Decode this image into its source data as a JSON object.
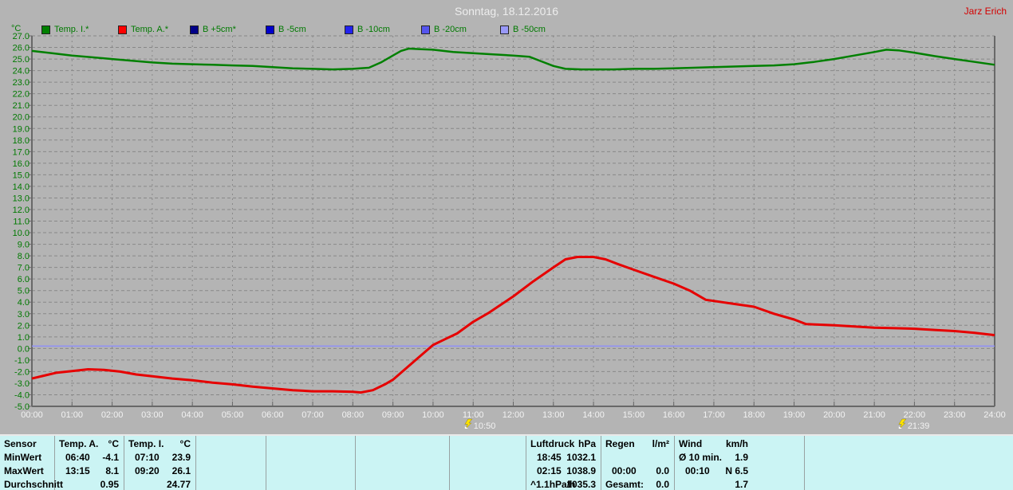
{
  "header": {
    "title": "Sonntag, 18.12.2016",
    "user": "Jarz Erich"
  },
  "legend": {
    "axis_unit": "°C",
    "items": [
      {
        "label": "Temp. I.*",
        "color": "#008000"
      },
      {
        "label": "Temp. A.*",
        "color": "#ff0000"
      },
      {
        "label": "B +5cm*",
        "color": "#000088"
      },
      {
        "label": "B -5cm",
        "color": "#0000cc"
      },
      {
        "label": "B -10cm",
        "color": "#2222ee"
      },
      {
        "label": "B -20cm",
        "color": "#5555ee"
      },
      {
        "label": "B -50cm",
        "color": "#9999f8"
      }
    ]
  },
  "chart_data": {
    "type": "line",
    "title": "Sonntag, 18.12.2016",
    "ylabel": "°C",
    "xlabel": "",
    "y_min": -5.0,
    "y_max": 27.0,
    "y_step": 1.0,
    "x_min": 0,
    "x_max": 24,
    "grid": true,
    "legend_position": "top",
    "x_ticks": [
      "00:00",
      "01:00",
      "02:00",
      "03:00",
      "04:00",
      "05:00",
      "06:00",
      "07:00",
      "08:00",
      "09:00",
      "10:00",
      "11:00",
      "12:00",
      "13:00",
      "14:00",
      "15:00",
      "16:00",
      "17:00",
      "18:00",
      "19:00",
      "20:00",
      "21:00",
      "22:00",
      "23:00",
      "24:00"
    ],
    "markers": [
      {
        "time": "10:50",
        "hour": 10.833,
        "icon": "lightning-icon"
      },
      {
        "time": "21:39",
        "hour": 21.65,
        "icon": "lightning-icon"
      }
    ],
    "series": [
      {
        "name": "B -50cm",
        "color": "#8f8ff8",
        "width": 1.5,
        "points": [
          [
            0,
            0.2
          ],
          [
            24,
            0.2
          ]
        ]
      },
      {
        "name": "Temp. A.*",
        "color": "#e60000",
        "width": 3,
        "points": [
          [
            0,
            -2.6
          ],
          [
            0.3,
            -2.35
          ],
          [
            0.6,
            -2.1
          ],
          [
            1,
            -1.95
          ],
          [
            1.4,
            -1.8
          ],
          [
            1.8,
            -1.85
          ],
          [
            2.2,
            -2.0
          ],
          [
            2.6,
            -2.25
          ],
          [
            3,
            -2.4
          ],
          [
            3.5,
            -2.6
          ],
          [
            4,
            -2.75
          ],
          [
            4.5,
            -2.95
          ],
          [
            5,
            -3.1
          ],
          [
            5.5,
            -3.3
          ],
          [
            6,
            -3.45
          ],
          [
            6.5,
            -3.6
          ],
          [
            7,
            -3.7
          ],
          [
            7.5,
            -3.7
          ],
          [
            8,
            -3.75
          ],
          [
            8.2,
            -3.8
          ],
          [
            8.5,
            -3.6
          ],
          [
            8.8,
            -3.1
          ],
          [
            9,
            -2.7
          ],
          [
            9.3,
            -1.8
          ],
          [
            9.6,
            -0.9
          ],
          [
            10,
            0.3
          ],
          [
            10.3,
            0.8
          ],
          [
            10.6,
            1.3
          ],
          [
            11,
            2.3
          ],
          [
            11.4,
            3.1
          ],
          [
            11.7,
            3.8
          ],
          [
            12,
            4.5
          ],
          [
            12.5,
            5.8
          ],
          [
            13,
            7.0
          ],
          [
            13.3,
            7.7
          ],
          [
            13.6,
            7.9
          ],
          [
            14,
            7.9
          ],
          [
            14.3,
            7.7
          ],
          [
            14.6,
            7.3
          ],
          [
            15,
            6.8
          ],
          [
            15.5,
            6.2
          ],
          [
            16,
            5.6
          ],
          [
            16.4,
            5.0
          ],
          [
            16.8,
            4.2
          ],
          [
            17.2,
            4.0
          ],
          [
            17.6,
            3.8
          ],
          [
            18,
            3.6
          ],
          [
            18.5,
            3.0
          ],
          [
            19,
            2.5
          ],
          [
            19.3,
            2.1
          ],
          [
            19.7,
            2.05
          ],
          [
            20,
            2.0
          ],
          [
            20.5,
            1.9
          ],
          [
            21,
            1.8
          ],
          [
            21.5,
            1.75
          ],
          [
            22,
            1.7
          ],
          [
            22.5,
            1.6
          ],
          [
            23,
            1.5
          ],
          [
            23.5,
            1.35
          ],
          [
            24,
            1.15
          ]
        ]
      },
      {
        "name": "Temp. I.*",
        "color": "#008000",
        "width": 2.5,
        "points": [
          [
            0,
            25.7
          ],
          [
            0.5,
            25.5
          ],
          [
            1,
            25.3
          ],
          [
            1.5,
            25.15
          ],
          [
            2,
            25.0
          ],
          [
            2.5,
            24.85
          ],
          [
            3,
            24.7
          ],
          [
            3.5,
            24.6
          ],
          [
            4,
            24.55
          ],
          [
            4.5,
            24.5
          ],
          [
            5,
            24.45
          ],
          [
            5.5,
            24.4
          ],
          [
            6,
            24.3
          ],
          [
            6.5,
            24.2
          ],
          [
            7,
            24.15
          ],
          [
            7.5,
            24.1
          ],
          [
            8,
            24.15
          ],
          [
            8.4,
            24.25
          ],
          [
            8.7,
            24.7
          ],
          [
            9,
            25.3
          ],
          [
            9.2,
            25.7
          ],
          [
            9.4,
            25.9
          ],
          [
            9.7,
            25.85
          ],
          [
            10,
            25.8
          ],
          [
            10.5,
            25.6
          ],
          [
            11,
            25.5
          ],
          [
            11.5,
            25.4
          ],
          [
            12,
            25.3
          ],
          [
            12.4,
            25.2
          ],
          [
            12.7,
            24.8
          ],
          [
            13,
            24.4
          ],
          [
            13.3,
            24.15
          ],
          [
            13.7,
            24.1
          ],
          [
            14,
            24.1
          ],
          [
            14.5,
            24.1
          ],
          [
            15,
            24.15
          ],
          [
            15.5,
            24.15
          ],
          [
            16,
            24.2
          ],
          [
            16.5,
            24.25
          ],
          [
            17,
            24.3
          ],
          [
            17.5,
            24.35
          ],
          [
            18,
            24.4
          ],
          [
            18.5,
            24.45
          ],
          [
            19,
            24.55
          ],
          [
            19.5,
            24.75
          ],
          [
            20,
            25.0
          ],
          [
            20.5,
            25.3
          ],
          [
            21,
            25.6
          ],
          [
            21.3,
            25.8
          ],
          [
            21.6,
            25.75
          ],
          [
            22,
            25.55
          ],
          [
            22.5,
            25.25
          ],
          [
            23,
            25.0
          ],
          [
            23.5,
            24.75
          ],
          [
            24,
            24.5
          ]
        ]
      }
    ]
  },
  "stats_table": {
    "row_labels": [
      "Sensor",
      "MinWert",
      "MaxWert",
      "Durchschnitt"
    ],
    "columns": [
      {
        "name": "Temp. A.",
        "unit": "°C",
        "rows": [
          [
            "06:40",
            "-4.1"
          ],
          [
            "13:15",
            "8.1"
          ],
          [
            "",
            "0.95"
          ]
        ]
      },
      {
        "name": "Temp. I.",
        "unit": "°C",
        "rows": [
          [
            "07:10",
            "23.9"
          ],
          [
            "09:20",
            "26.1"
          ],
          [
            "",
            "24.77"
          ]
        ]
      },
      {
        "name": "Luftdruck",
        "unit": "hPa",
        "rows": [
          [
            "18:45",
            "1032.1"
          ],
          [
            "02:15",
            "1038.9"
          ],
          [
            "^1.1hPa/h",
            "1035.3"
          ]
        ]
      },
      {
        "name": "Regen",
        "unit": "l/m²",
        "rows": [
          [
            "",
            ""
          ],
          [
            "00:00",
            "0.0"
          ],
          [
            "Gesamt:",
            "0.0"
          ]
        ]
      },
      {
        "name": "Wind",
        "unit": "km/h",
        "rows": [
          [
            "Ø 10 min.",
            "1.9"
          ],
          [
            "00:10",
            "N 6.5"
          ],
          [
            "",
            "1.7"
          ]
        ]
      }
    ]
  },
  "colors": {
    "background": "#b4b4b4",
    "grid": "#888888",
    "axis": "#686868",
    "x_label": "#f2f2f2",
    "y_label": "#007a00",
    "title": "#ededed",
    "user": "#d40000",
    "table_bg": "#cbf4f4",
    "marker_yellow": "#ffe400"
  }
}
